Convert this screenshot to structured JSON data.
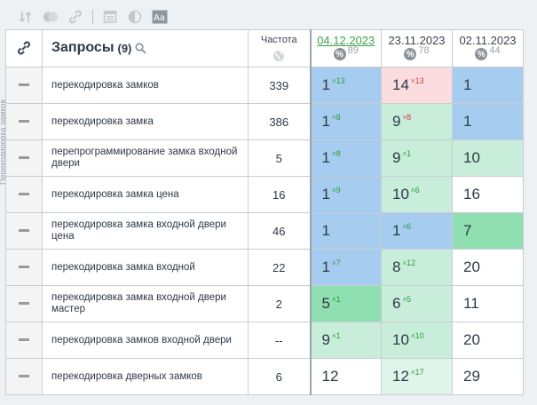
{
  "sidebar_label": "Перекодировка замков",
  "header": {
    "queries_title": "Запросы",
    "queries_count": "(9)",
    "frequency_title": "Частота",
    "dates": [
      {
        "date": "04.12.2023",
        "count": "89"
      },
      {
        "date": "23.11.2023",
        "count": "78"
      },
      {
        "date": "02.11.2023",
        "count": "44"
      }
    ]
  },
  "rows": [
    {
      "query": "перекодировка замков",
      "freq": "339",
      "cells": [
        {
          "pos": "1",
          "delta": "13",
          "dir": "up",
          "bg": "blue"
        },
        {
          "pos": "14",
          "delta": "13",
          "dir": "down",
          "bg": "pink"
        },
        {
          "pos": "1",
          "delta": "",
          "dir": "",
          "bg": "blue"
        }
      ]
    },
    {
      "query": "перекодировка замка",
      "freq": "386",
      "cells": [
        {
          "pos": "1",
          "delta": "8",
          "dir": "up",
          "bg": "blue"
        },
        {
          "pos": "9",
          "delta": "8",
          "dir": "down",
          "bg": "lgreen"
        },
        {
          "pos": "1",
          "delta": "",
          "dir": "",
          "bg": "blue"
        }
      ]
    },
    {
      "query": "перепрограммирование замка входной двери",
      "freq": "5",
      "cells": [
        {
          "pos": "1",
          "delta": "8",
          "dir": "up",
          "bg": "blue"
        },
        {
          "pos": "9",
          "delta": "1",
          "dir": "up",
          "bg": "lgreen"
        },
        {
          "pos": "10",
          "delta": "",
          "dir": "",
          "bg": "lgreen"
        }
      ]
    },
    {
      "query": "перекодировка замка цена",
      "freq": "16",
      "cells": [
        {
          "pos": "1",
          "delta": "9",
          "dir": "up",
          "bg": "blue"
        },
        {
          "pos": "10",
          "delta": "6",
          "dir": "up",
          "bg": "lgreen"
        },
        {
          "pos": "16",
          "delta": "",
          "dir": "",
          "bg": "white"
        }
      ]
    },
    {
      "query": "перекодировка замка входной двери цена",
      "freq": "46",
      "cells": [
        {
          "pos": "1",
          "delta": "",
          "dir": "",
          "bg": "blue"
        },
        {
          "pos": "1",
          "delta": "6",
          "dir": "up",
          "bg": "blue"
        },
        {
          "pos": "7",
          "delta": "",
          "dir": "",
          "bg": "green"
        }
      ]
    },
    {
      "query": "перекодировка замка входной",
      "freq": "22",
      "cells": [
        {
          "pos": "1",
          "delta": "7",
          "dir": "up",
          "bg": "blue"
        },
        {
          "pos": "8",
          "delta": "12",
          "dir": "up",
          "bg": "lgreen"
        },
        {
          "pos": "20",
          "delta": "",
          "dir": "",
          "bg": "white"
        }
      ]
    },
    {
      "query": "перекодировка замка входной двери мастер",
      "freq": "2",
      "cells": [
        {
          "pos": "5",
          "delta": "1",
          "dir": "up",
          "bg": "green"
        },
        {
          "pos": "6",
          "delta": "5",
          "dir": "up",
          "bg": "lgreen"
        },
        {
          "pos": "11",
          "delta": "",
          "dir": "",
          "bg": "white"
        }
      ]
    },
    {
      "query": "перекодировка замков входной двери",
      "freq": "--",
      "cells": [
        {
          "pos": "9",
          "delta": "1",
          "dir": "up",
          "bg": "lgreen"
        },
        {
          "pos": "10",
          "delta": "10",
          "dir": "up",
          "bg": "lgreen"
        },
        {
          "pos": "20",
          "delta": "",
          "dir": "",
          "bg": "white"
        }
      ]
    },
    {
      "query": "перекодировка дверных замков",
      "freq": "6",
      "cells": [
        {
          "pos": "12",
          "delta": "",
          "dir": "",
          "bg": "white"
        },
        {
          "pos": "12",
          "delta": "17",
          "dir": "up",
          "bg": "palegreen"
        },
        {
          "pos": "29",
          "delta": "",
          "dir": "",
          "bg": "white"
        }
      ]
    }
  ],
  "colors": {
    "blue": "#a6cdf0",
    "lgreen": "#c8eedb",
    "green": "#8fdfb1",
    "pink": "#fbdde0",
    "white": "#ffffff",
    "palegreen": "#e0f5ea",
    "delta_up": "#2d9a3c",
    "delta_down": "#d6393a",
    "date_link": "#3aa54a"
  },
  "toolbar_icons": [
    "sort-icon",
    "toggle-icon",
    "link-icon",
    "calendar-icon",
    "contrast-icon",
    "font-size-icon"
  ]
}
